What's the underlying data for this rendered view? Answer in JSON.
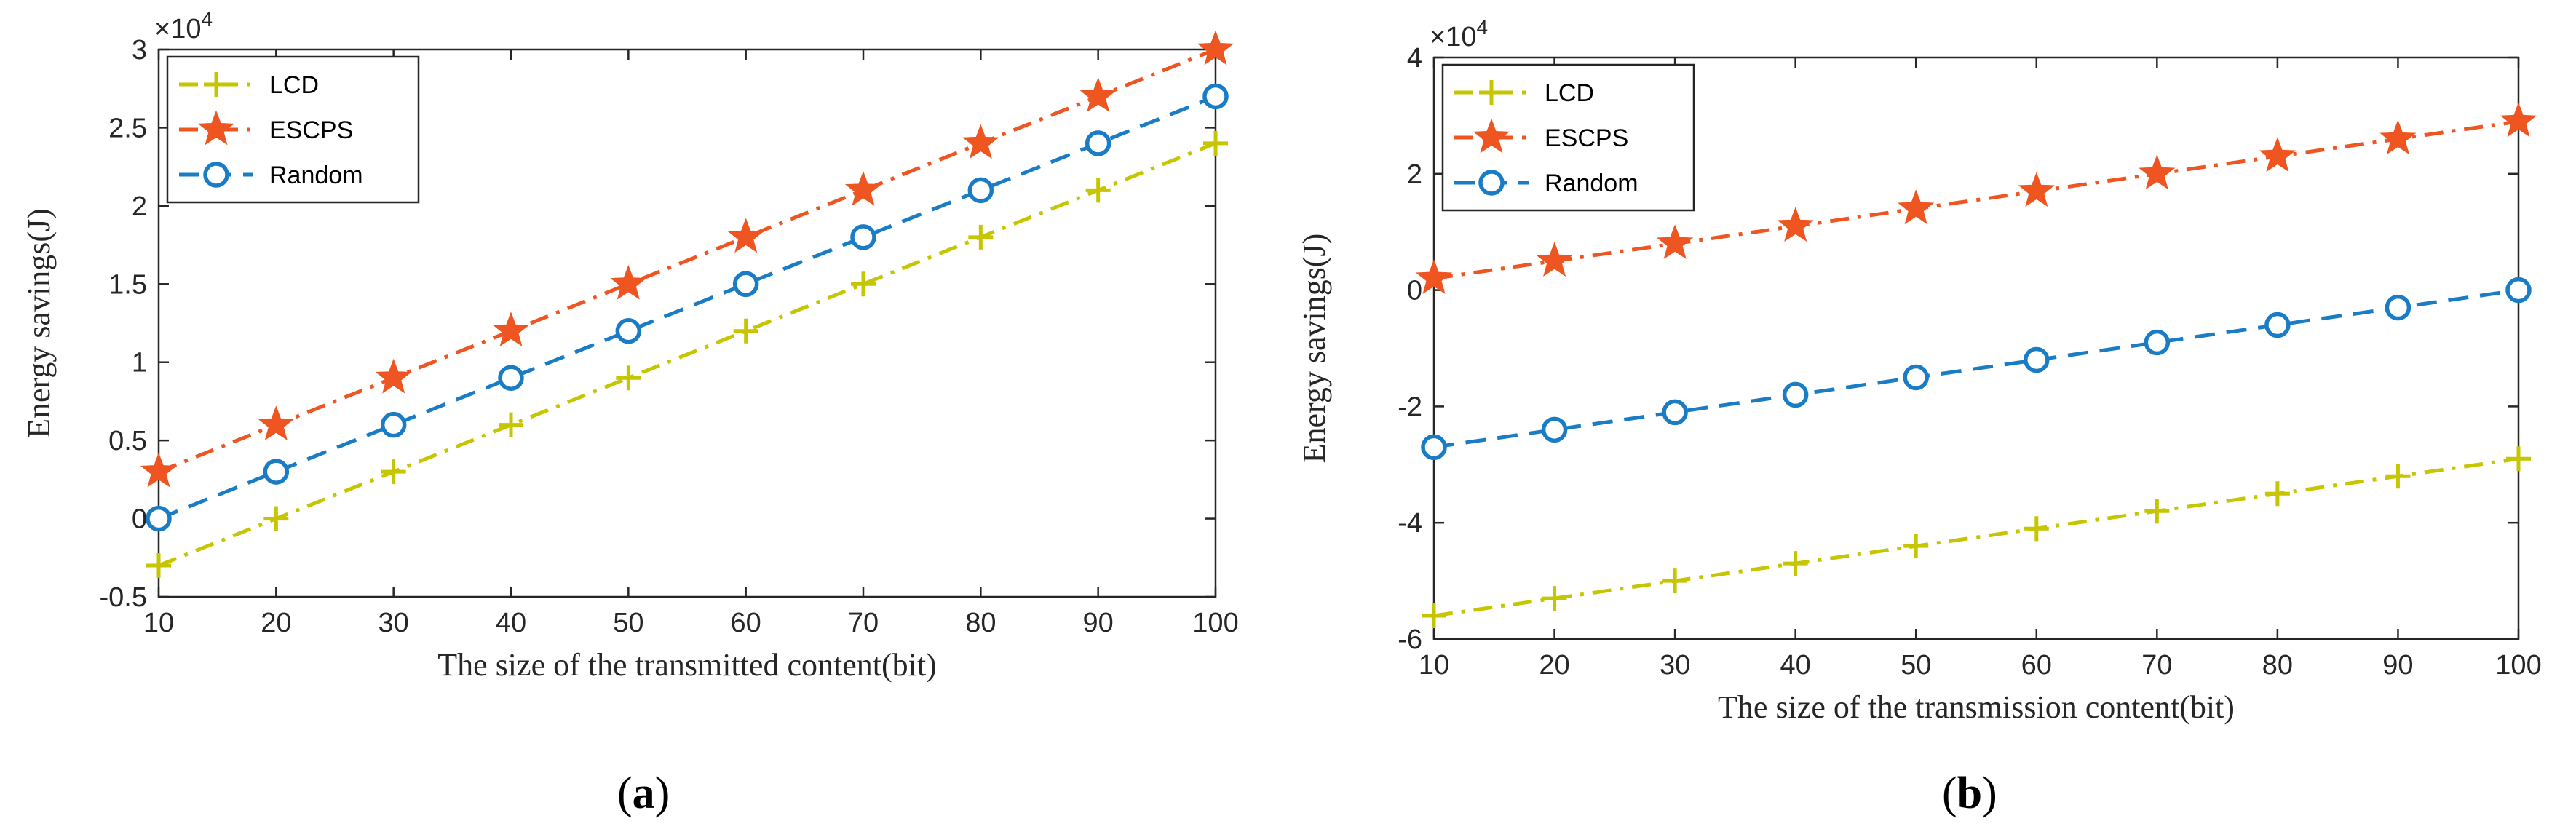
{
  "figure": {
    "panels": [
      "a",
      "b"
    ]
  },
  "chart_data": [
    {
      "type": "line",
      "panel_label": "a",
      "exponent_label": "×10",
      "exponent_power": "4",
      "xlabel": "The size of the transmitted content(bit)",
      "ylabel": "Energy savings(J)",
      "x": [
        10,
        20,
        30,
        40,
        50,
        60,
        70,
        80,
        90,
        100
      ],
      "xlim": [
        10,
        100
      ],
      "ylim": [
        -0.5,
        3
      ],
      "xticks": [
        "10",
        "20",
        "30",
        "40",
        "50",
        "60",
        "70",
        "80",
        "90",
        "100"
      ],
      "yticks": [
        -0.5,
        0,
        0.5,
        1,
        1.5,
        2,
        2.5,
        3
      ],
      "ytick_labels": [
        "-0.5",
        "0",
        "0.5",
        "1",
        "1.5",
        "2",
        "2.5",
        "3"
      ],
      "legend_position": "top-left",
      "series": [
        {
          "name": "LCD",
          "color": "#c6c600",
          "dash": "dashdot",
          "marker": "plus",
          "values": [
            -0.3,
            0,
            0.3,
            0.6,
            0.9,
            1.2,
            1.5,
            1.8,
            2.1,
            2.4
          ]
        },
        {
          "name": "ESCPS",
          "color": "#ee5521",
          "dash": "dashdot",
          "marker": "star",
          "values": [
            0.3,
            0.6,
            0.9,
            1.2,
            1.5,
            1.8,
            2.1,
            2.4,
            2.7,
            3.0
          ]
        },
        {
          "name": "Random",
          "color": "#1a7cc4",
          "dash": "dashed",
          "marker": "circle",
          "values": [
            0,
            0.3,
            0.6,
            0.9,
            1.2,
            1.5,
            1.8,
            2.1,
            2.4,
            2.7
          ]
        }
      ]
    },
    {
      "type": "line",
      "panel_label": "b",
      "exponent_label": "×10",
      "exponent_power": "4",
      "xlabel": "The size of the transmission content(bit)",
      "ylabel": "Energy savings(J)",
      "x": [
        10,
        20,
        30,
        40,
        50,
        60,
        70,
        80,
        90,
        100
      ],
      "xlim": [
        10,
        100
      ],
      "ylim": [
        -6,
        4
      ],
      "xticks": [
        "10",
        "20",
        "30",
        "40",
        "50",
        "60",
        "70",
        "80",
        "90",
        "100"
      ],
      "yticks": [
        -6,
        -4,
        -2,
        0,
        2,
        4
      ],
      "ytick_labels": [
        "-6",
        "-4",
        "-2",
        "0",
        "2",
        "4"
      ],
      "legend_position": "top-left",
      "series": [
        {
          "name": "LCD",
          "color": "#c6c600",
          "dash": "dashdot",
          "marker": "plus",
          "values": [
            -5.6,
            -5.3,
            -5.0,
            -4.7,
            -4.4,
            -4.1,
            -3.8,
            -3.5,
            -3.2,
            -2.9
          ]
        },
        {
          "name": "ESCPS",
          "color": "#ee5521",
          "dash": "dashdot",
          "marker": "star",
          "values": [
            0.2,
            0.5,
            0.8,
            1.1,
            1.4,
            1.7,
            2.0,
            2.3,
            2.6,
            2.9
          ]
        },
        {
          "name": "Random",
          "color": "#1a7cc4",
          "dash": "dashed",
          "marker": "circle",
          "values": [
            -2.7,
            -2.4,
            -2.1,
            -1.8,
            -1.5,
            -1.2,
            -0.9,
            -0.6,
            -0.3,
            0.0
          ]
        }
      ]
    }
  ]
}
